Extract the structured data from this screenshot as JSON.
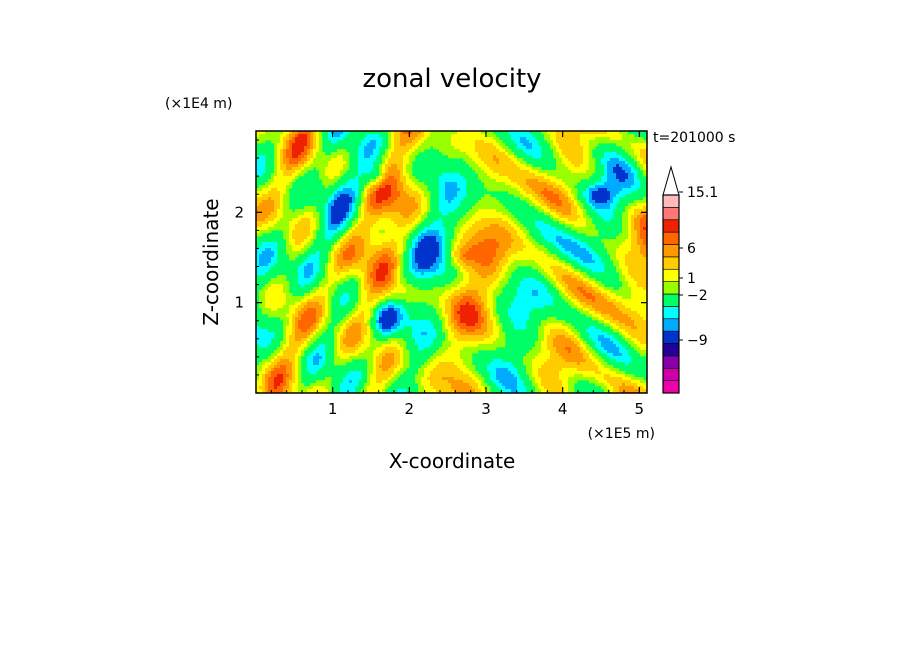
{
  "chart_data": {
    "type": "heatmap",
    "title": "zonal velocity",
    "xlabel": "X-coordinate",
    "ylabel": "Z-coordinate",
    "x_unit": "(×1E5 m)",
    "y_unit": "(×1E4 m)",
    "time_label": "t=201000 s",
    "xlim": [
      0,
      5.1
    ],
    "ylim": [
      0,
      2.9
    ],
    "x_ticks": [
      1,
      2,
      3,
      4,
      5
    ],
    "y_ticks": [
      1,
      2
    ],
    "colorbar": {
      "colors": [
        "#ee00aa",
        "#cc00aa",
        "#8800aa",
        "#220099",
        "#0033cc",
        "#00aaff",
        "#00ffff",
        "#00ff66",
        "#99ff00",
        "#ffff00",
        "#ffcc00",
        "#ff9900",
        "#ff6600",
        "#ee2200",
        "#ff7777",
        "#ffbbbb"
      ],
      "tick_labels": [
        "15.1",
        "6",
        "1",
        "−2",
        "−9"
      ],
      "extend_max": true
    }
  }
}
